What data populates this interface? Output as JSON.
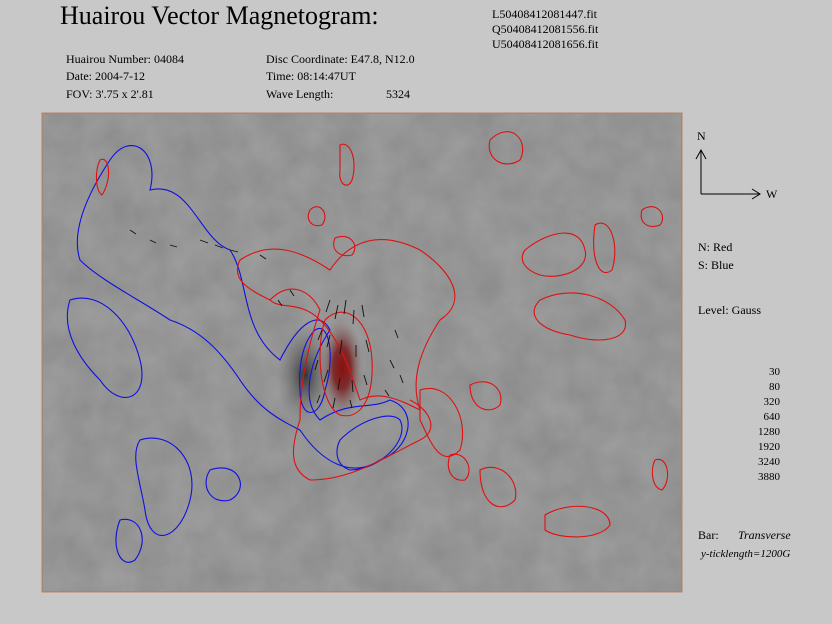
{
  "header": {
    "title": "Huairou Vector Magnetogram:",
    "files": [
      "L50408412081447.fit",
      "Q50408412081556.fit",
      "U50408412081656.fit"
    ]
  },
  "info": {
    "number": "Huairou Number: 04084",
    "date": "Date: 2004-7-12",
    "fov": "FOV:  3'.75 x 2'.81",
    "disc": "Disc Coordinate:  E47.8, N12.0",
    "time": "Time: 08:14:47UT",
    "wave_label": "Wave Length:",
    "wave_value": "5324"
  },
  "legend": {
    "north": "N",
    "west": "W",
    "north_color": "N: Red",
    "south_color": "S: Blue",
    "level": "Level: Gauss",
    "levels": [
      30,
      80,
      320,
      640,
      1280,
      1920,
      3240,
      3880
    ],
    "bar": "Bar:",
    "bar_type": "Transverse",
    "ticklength": "y-ticklength=1200G"
  }
}
